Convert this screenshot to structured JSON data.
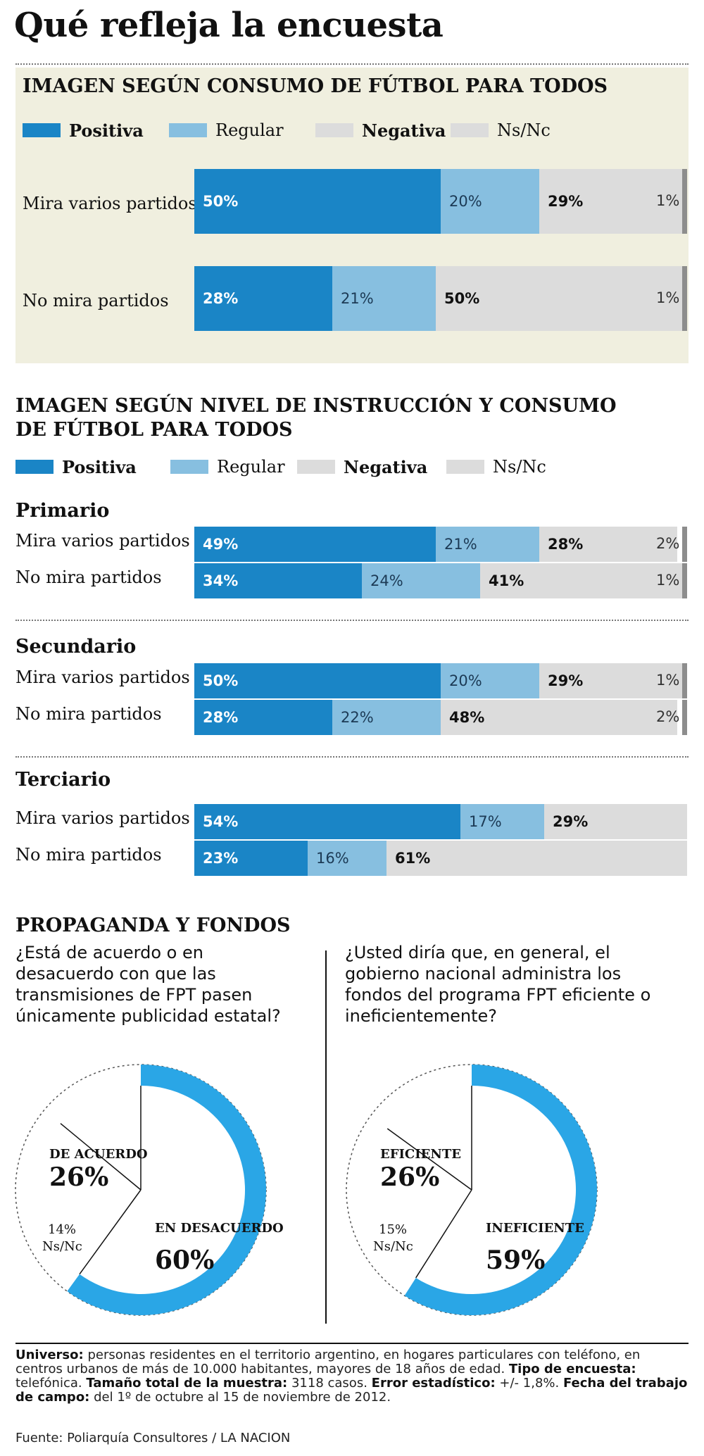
{
  "title": "Qué refleja la encuesta",
  "colors": {
    "positiva": "#1a85c6",
    "regular": "#87bfe0",
    "negativa": "#dcdcdc",
    "nsnc": "#dcdcdc",
    "panel": "#f0efdf"
  },
  "legend": {
    "positiva": "Positiva",
    "regular": "Regular",
    "negativa": "Negativa",
    "nsnc": "Ns/Nc"
  },
  "chart_data": [
    {
      "type": "bar",
      "stacked": true,
      "orientation": "horizontal",
      "title": "IMAGEN SEGÚN CONSUMO DE FÚTBOL PARA TODOS",
      "categories": [
        "Mira varios partidos",
        "No mira partidos"
      ],
      "series": [
        {
          "name": "Positiva",
          "values": [
            50,
            28
          ]
        },
        {
          "name": "Regular",
          "values": [
            20,
            21
          ]
        },
        {
          "name": "Negativa",
          "values": [
            29,
            50
          ]
        },
        {
          "name": "Ns/Nc",
          "values": [
            1,
            1
          ]
        }
      ],
      "labels": [
        [
          "50%",
          "20%",
          "29%",
          "1%"
        ],
        [
          "28%",
          "21%",
          "50%",
          "1%"
        ]
      ]
    },
    {
      "type": "bar",
      "stacked": true,
      "orientation": "horizontal",
      "title": "IMAGEN SEGÚN NIVEL DE INSTRUCCIÓN Y CONSUMO DE FÚTBOL PARA TODOS",
      "groups": [
        {
          "name": "Primario",
          "categories": [
            "Mira varios partidos",
            "No mira partidos"
          ],
          "series": [
            {
              "name": "Positiva",
              "values": [
                49,
                34
              ]
            },
            {
              "name": "Regular",
              "values": [
                21,
                24
              ]
            },
            {
              "name": "Negativa",
              "values": [
                28,
                41
              ]
            },
            {
              "name": "Ns/Nc",
              "values": [
                2,
                1
              ]
            }
          ],
          "labels": [
            [
              "49%",
              "21%",
              "28%",
              "2%"
            ],
            [
              "34%",
              "24%",
              "41%",
              "1%"
            ]
          ]
        },
        {
          "name": "Secundario",
          "categories": [
            "Mira varios partidos",
            "No mira partidos"
          ],
          "series": [
            {
              "name": "Positiva",
              "values": [
                50,
                28
              ]
            },
            {
              "name": "Regular",
              "values": [
                20,
                22
              ]
            },
            {
              "name": "Negativa",
              "values": [
                29,
                48
              ]
            },
            {
              "name": "Ns/Nc",
              "values": [
                1,
                2
              ]
            }
          ],
          "labels": [
            [
              "50%",
              "20%",
              "29%",
              "1%"
            ],
            [
              "28%",
              "22%",
              "48%",
              "2%"
            ]
          ]
        },
        {
          "name": "Terciario",
          "categories": [
            "Mira varios partidos",
            "No mira partidos"
          ],
          "series": [
            {
              "name": "Positiva",
              "values": [
                54,
                23
              ]
            },
            {
              "name": "Regular",
              "values": [
                17,
                16
              ]
            },
            {
              "name": "Negativa",
              "values": [
                29,
                61
              ]
            },
            {
              "name": "Ns/Nc",
              "values": [
                0,
                0
              ]
            }
          ],
          "labels": [
            [
              "54%",
              "17%",
              "29%",
              ""
            ],
            [
              "23%",
              "16%",
              "61%",
              ""
            ]
          ]
        }
      ]
    },
    {
      "type": "pie",
      "question": "¿Está de acuerdo o en desacuerdo con que las transmisiones de FPT pasen únicamente publicidad estatal?",
      "slices": [
        {
          "name": "EN DESACUERDO",
          "value": 60,
          "label": "60%"
        },
        {
          "name": "DE ACUERDO",
          "value": 26,
          "label": "26%"
        },
        {
          "name": "Ns/Nc",
          "value": 14,
          "label": "14%"
        }
      ]
    },
    {
      "type": "pie",
      "question": "¿Usted diría que, en general, el gobierno nacional administra los fondos del programa FPT eficiente o ineficientemente?",
      "slices": [
        {
          "name": "INEFICIENTE",
          "value": 59,
          "label": "59%"
        },
        {
          "name": "EFICIENTE",
          "value": 26,
          "label": "26%"
        },
        {
          "name": "Ns/Nc",
          "value": 15,
          "label": "15%"
        }
      ]
    }
  ],
  "section3": {
    "title": "PROPAGANDA Y FONDOS"
  },
  "footnote": {
    "universo_label": "Universo:",
    "universo_text": "personas residentes en el territorio argentino, en hogares particulares con teléfono, en centros urbanos de más de 10.000 habitantes, mayores de 18 años de edad.",
    "tipo_label": "Tipo de encuesta:",
    "tipo_text": "telefónica.",
    "muestra_label": "Tamaño total de la muestra:",
    "muestra_text": "3118 casos.",
    "error_label": "Error estadístico:",
    "error_text": "+/- 1,8%.",
    "fecha_label": "Fecha del trabajo de campo:",
    "fecha_text": "del 1º de octubre al 15 de noviembre de 2012."
  },
  "source": "Fuente: Poliarquía Consultores / LA NACION"
}
